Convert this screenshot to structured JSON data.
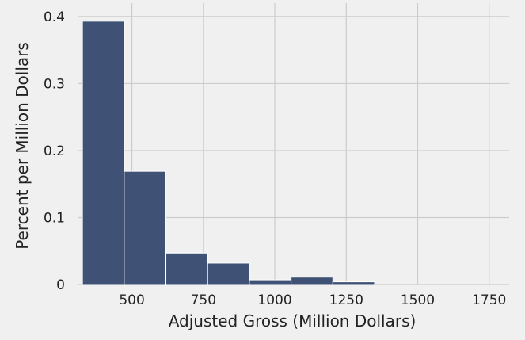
{
  "chart_data": {
    "type": "histogram",
    "xlabel": "Adjusted Gross (Million Dollars)",
    "ylabel": "Percent per Million Dollars",
    "xlim": [
      310,
      1820
    ],
    "ylim": [
      0,
      0.42
    ],
    "xticks": [
      500,
      750,
      1000,
      1250,
      1500,
      1750
    ],
    "xtick_labels": [
      "500",
      "750",
      "1000",
      "1250",
      "1500",
      "1750"
    ],
    "yticks": [
      0,
      0.1,
      0.2,
      0.3,
      0.4
    ],
    "ytick_labels": [
      "0",
      "0.1",
      "0.2",
      "0.3",
      "0.4"
    ],
    "bins": [
      {
        "start": 327,
        "end": 473,
        "value": 0.393
      },
      {
        "start": 473,
        "end": 619,
        "value": 0.169
      },
      {
        "start": 619,
        "end": 765,
        "value": 0.047
      },
      {
        "start": 765,
        "end": 911,
        "value": 0.032
      },
      {
        "start": 911,
        "end": 1057,
        "value": 0.007
      },
      {
        "start": 1057,
        "end": 1203,
        "value": 0.011
      },
      {
        "start": 1203,
        "end": 1349,
        "value": 0.004
      },
      {
        "start": 1349,
        "end": 1495,
        "value": 0.0
      },
      {
        "start": 1495,
        "end": 1641,
        "value": 0.0
      },
      {
        "start": 1641,
        "end": 1787,
        "value": 0.0
      }
    ],
    "grid": true,
    "colors": {
      "bar": "#3f5175",
      "bar_edge": "#ffffff",
      "grid": "#cccccc",
      "background": "#f0f0f0"
    }
  }
}
